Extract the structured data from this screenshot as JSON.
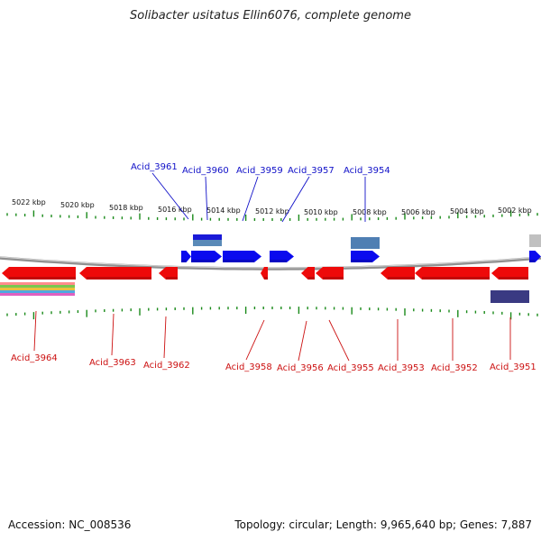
{
  "title": "Solibacter usitatus Ellin6076, complete genome",
  "footer": {
    "accession": "Accession: NC_008536",
    "summary": "Topology: circular; Length: 9,965,640 bp; Genes: 7,887"
  },
  "colors": {
    "forward_gene": "#0a0aee",
    "reverse_gene": "#ee0a0a",
    "backbone": "#808080",
    "tick": "#1a8a1a",
    "forward_label": "#1010c8",
    "reverse_label": "#cc1010"
  },
  "scale_labels": [
    "5022 kbp",
    "5020 kbp",
    "5018 kbp",
    "5016 kbp",
    "5014 kbp",
    "5012 kbp",
    "5010 kbp",
    "5008 kbp",
    "5006 kbp",
    "5004 kbp",
    "5002 kbp"
  ],
  "forward_labels": [
    "Acid_3961",
    "Acid_3960",
    "Acid_3959",
    "Acid_3957",
    "Acid_3954"
  ],
  "reverse_labels": [
    "Acid_3964",
    "Acid_3963",
    "Acid_3962",
    "Acid_3958",
    "Acid_3956",
    "Acid_3955",
    "Acid_3953",
    "Acid_3952",
    "Acid_3951"
  ]
}
